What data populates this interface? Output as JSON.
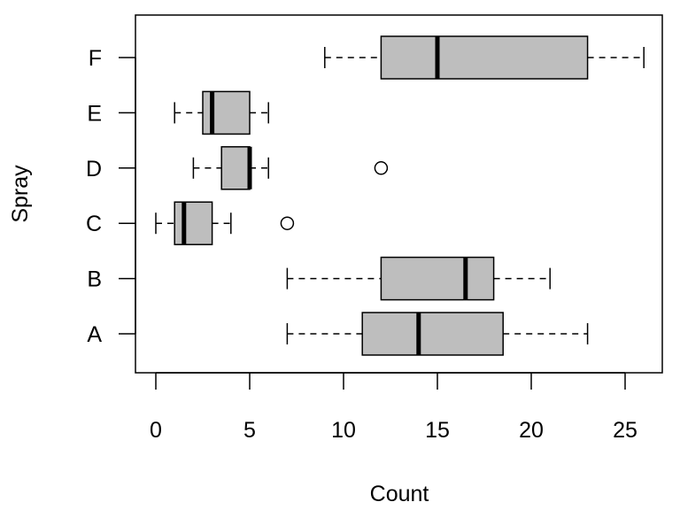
{
  "chart_data": {
    "type": "boxplot",
    "orientation": "horizontal",
    "xlabel": "Count",
    "ylabel": "Spray",
    "xlim": [
      -1,
      27
    ],
    "xticks": [
      0,
      5,
      10,
      15,
      20,
      25
    ],
    "categories": [
      "A",
      "B",
      "C",
      "D",
      "E",
      "F"
    ],
    "boxes": [
      {
        "label": "A",
        "min": 7,
        "q1": 11,
        "median": 14,
        "q3": 18.5,
        "max": 23,
        "outliers": []
      },
      {
        "label": "B",
        "min": 7,
        "q1": 12,
        "median": 16.5,
        "q3": 18,
        "max": 21,
        "outliers": []
      },
      {
        "label": "C",
        "min": 0,
        "q1": 1,
        "median": 1.5,
        "q3": 3,
        "max": 4,
        "outliers": [
          7
        ]
      },
      {
        "label": "D",
        "min": 2,
        "q1": 3.5,
        "median": 5,
        "q3": 5,
        "max": 6,
        "outliers": [
          12
        ]
      },
      {
        "label": "E",
        "min": 1,
        "q1": 2.5,
        "median": 3,
        "q3": 5,
        "max": 6,
        "outliers": []
      },
      {
        "label": "F",
        "min": 9,
        "q1": 12,
        "median": 15,
        "q3": 23,
        "max": 26,
        "outliers": []
      }
    ],
    "colors": {
      "box_fill": "#bebebe",
      "stroke": "#000000",
      "background": "#ffffff"
    }
  }
}
